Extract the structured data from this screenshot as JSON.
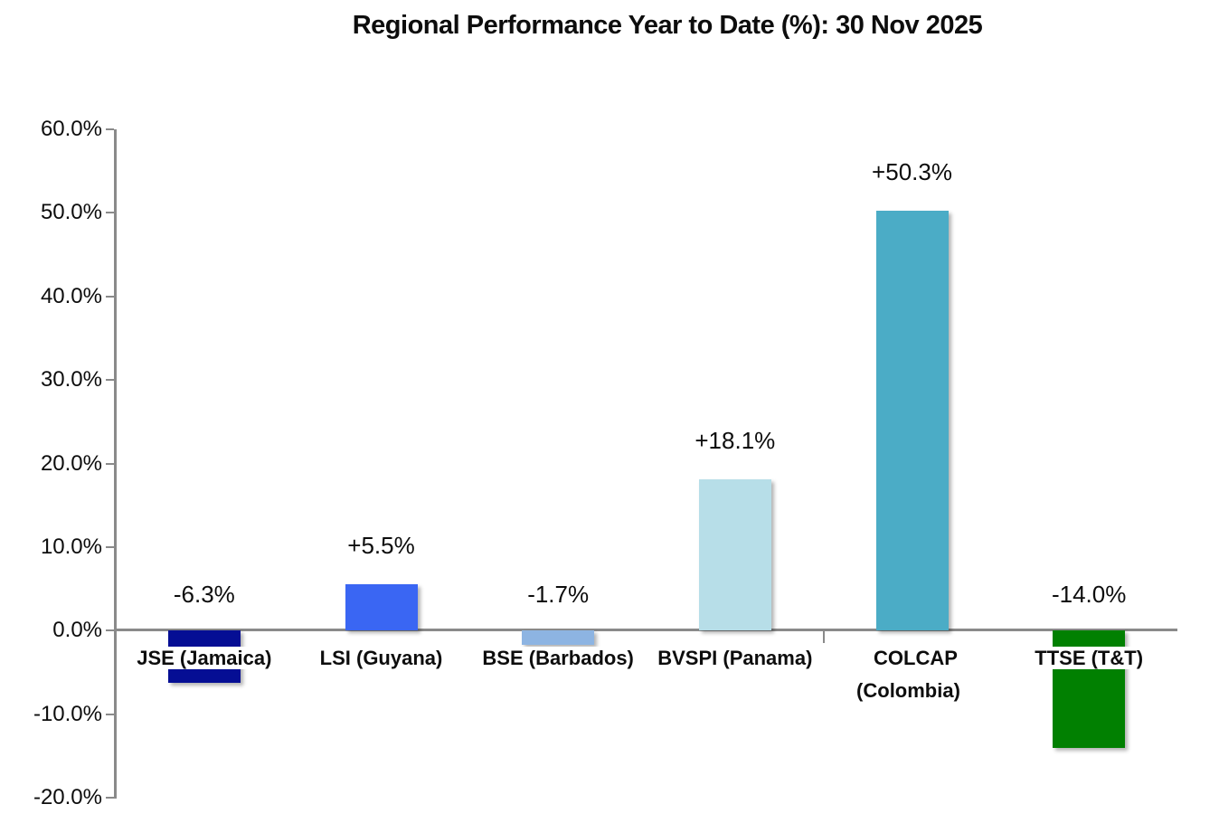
{
  "chart": {
    "title": "Regional Performance Year to Date (%): 30 Nov 2025"
  },
  "chart_data": {
    "type": "bar",
    "title": "Regional Performance Year to Date (%): 30 Nov 2025",
    "categories": [
      "JSE (Jamaica)",
      "LSI (Guyana)",
      "BSE (Barbados)",
      "BVSPI (Panama)",
      "COLCAP\n(Colombia)",
      "TTSE (T&T)"
    ],
    "values": [
      -6.3,
      5.5,
      -1.7,
      18.1,
      50.3,
      -14.0
    ],
    "value_labels": [
      "-6.3%",
      "+5.5%",
      "-1.7%",
      "+18.1%",
      "+50.3%",
      "-14.0%"
    ],
    "bar_colors": [
      "#050e94",
      "#3a66f3",
      "#8db4e2",
      "#b7dee8",
      "#4bacc6",
      "#018001"
    ],
    "label_over_bar": [
      true,
      false,
      false,
      false,
      false,
      true
    ],
    "xlabel": "",
    "ylabel": "",
    "ylim": [
      -20,
      60
    ],
    "y_tick_labels": [
      "60.0%",
      "50.0%",
      "40.0%",
      "30.0%",
      "20.0%",
      "10.0%",
      "0.0%",
      "-10.0%",
      "-20.0%"
    ],
    "y_tick_values": [
      60,
      50,
      40,
      30,
      20,
      10,
      0,
      -10,
      -20
    ],
    "grid": "off",
    "legend": "none",
    "axis_color": "#8a8a8a",
    "text_color": "#0d0d0d"
  }
}
